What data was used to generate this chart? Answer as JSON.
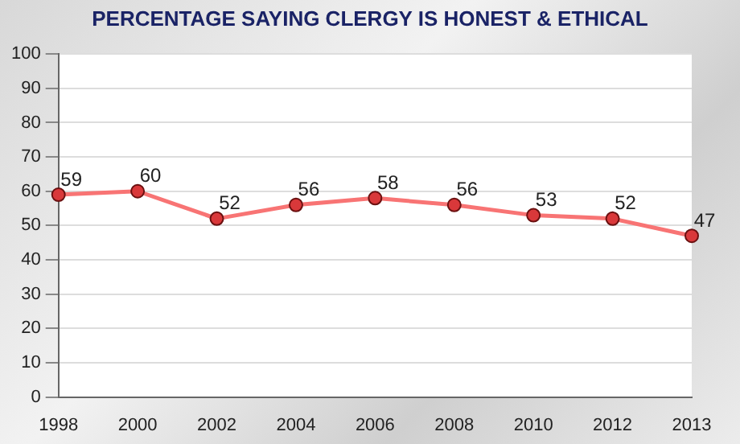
{
  "chart_data": {
    "type": "line",
    "title": "PERCENTAGE SAYING CLERGY IS HONEST & ETHICAL",
    "categories": [
      "1998",
      "2000",
      "2002",
      "2004",
      "2006",
      "2008",
      "2010",
      "2012",
      "2013"
    ],
    "series": [
      {
        "color": "#f87474",
        "values": [
          59,
          60,
          52,
          56,
          58,
          56,
          53,
          52,
          47
        ]
      }
    ],
    "ylim": [
      0,
      100
    ],
    "yticks": [
      0,
      10,
      20,
      30,
      40,
      50,
      60,
      70,
      80,
      90,
      100
    ],
    "grid": "y",
    "marker": "circle",
    "data_labels": true,
    "legend": false
  }
}
